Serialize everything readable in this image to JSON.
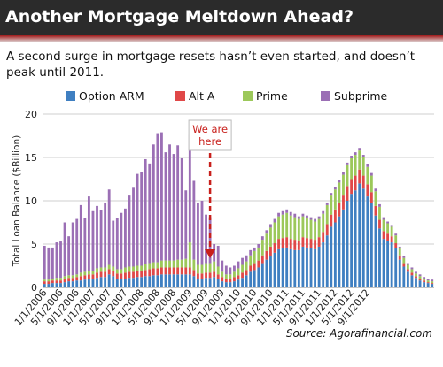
{
  "header": {
    "title": "Another Mortgage Meltdown Ahead?"
  },
  "subtitle": "A second surge in mortgage resets hasn’t even started, and doesn’t peak until 2011.",
  "source": "Source: Agorafinancial.com",
  "colors": {
    "banner": "#2b2b2b",
    "accent": "#a01818",
    "arrow": "#c8201c"
  },
  "chart_data": {
    "type": "bar",
    "stacked": true,
    "ylabel": "Total Loan Balance ($Billion)",
    "ylim": [
      0,
      20
    ],
    "yticks": [
      0,
      5,
      10,
      15,
      20
    ],
    "grid": true,
    "legend_position": "top",
    "start_month": "1/1/2006",
    "xtick_labels": [
      "1/1/2006",
      "5/1/2006",
      "9/1/2006",
      "1/1/2007",
      "5/1/2007",
      "9/1/2007",
      "1/1/2008",
      "5/1/2008",
      "9/1/2008",
      "1/1/2009",
      "5/1/2009",
      "9/1/2009",
      "1/1/2010",
      "5/1/2010",
      "9/1/2010",
      "1/1/2011",
      "5/1/2011",
      "9/1/2011",
      "1/1/2012",
      "5/1/2012",
      "9/1/2012"
    ],
    "annotation": {
      "lines": [
        "We are",
        "here"
      ],
      "month": "6/1/2009"
    },
    "series": [
      {
        "name": "Option ARM",
        "color": "#3f7fc1",
        "values": [
          0.4,
          0.4,
          0.5,
          0.5,
          0.5,
          0.6,
          0.7,
          0.7,
          0.8,
          0.8,
          0.9,
          1.0,
          1.0,
          1.1,
          1.2,
          1.2,
          1.5,
          1.3,
          1.0,
          1.0,
          1.0,
          1.1,
          1.1,
          1.2,
          1.2,
          1.3,
          1.3,
          1.4,
          1.4,
          1.5,
          1.5,
          1.5,
          1.5,
          1.5,
          1.5,
          1.5,
          1.5,
          1.3,
          1.0,
          1.0,
          1.1,
          1.1,
          1.2,
          1.0,
          0.7,
          0.6,
          0.6,
          0.7,
          0.9,
          1.1,
          1.4,
          1.8,
          2.0,
          2.3,
          2.8,
          3.2,
          3.6,
          4.0,
          4.4,
          4.5,
          4.6,
          4.4,
          4.3,
          4.3,
          4.7,
          4.6,
          4.5,
          4.4,
          4.7,
          5.2,
          6.0,
          7.0,
          7.5,
          8.2,
          9.0,
          10.0,
          10.8,
          11.2,
          12.0,
          11.4,
          10.5,
          9.7,
          8.3,
          6.8,
          5.6,
          5.4,
          5.2,
          4.5,
          3.2,
          2.4,
          1.8,
          1.4,
          1.1,
          0.8,
          0.6,
          0.5,
          0.4
        ]
      },
      {
        "name": "Alt A",
        "color": "#e04848",
        "values": [
          0.3,
          0.3,
          0.3,
          0.3,
          0.3,
          0.4,
          0.4,
          0.4,
          0.4,
          0.5,
          0.5,
          0.5,
          0.5,
          0.6,
          0.6,
          0.6,
          0.6,
          0.6,
          0.6,
          0.6,
          0.7,
          0.7,
          0.7,
          0.7,
          0.7,
          0.7,
          0.8,
          0.8,
          0.8,
          0.8,
          0.8,
          0.8,
          0.8,
          0.8,
          0.8,
          0.8,
          0.8,
          0.7,
          0.6,
          0.6,
          0.6,
          0.6,
          0.6,
          0.5,
          0.5,
          0.4,
          0.4,
          0.5,
          0.5,
          0.6,
          0.6,
          0.7,
          0.8,
          0.8,
          0.9,
          1.0,
          1.1,
          1.1,
          1.2,
          1.2,
          1.2,
          1.2,
          1.2,
          1.1,
          1.1,
          1.1,
          1.1,
          1.1,
          1.1,
          1.2,
          1.3,
          1.4,
          1.5,
          1.6,
          1.6,
          1.7,
          1.7,
          1.7,
          1.6,
          1.5,
          1.4,
          1.3,
          1.1,
          1.0,
          0.9,
          0.8,
          0.7,
          0.6,
          0.5,
          0.4,
          0.3,
          0.3,
          0.2,
          0.2,
          0.2,
          0.1,
          0.1
        ]
      },
      {
        "name": "Prime",
        "color": "#9cc85a",
        "values": [
          0.2,
          0.2,
          0.2,
          0.3,
          0.3,
          0.3,
          0.3,
          0.3,
          0.3,
          0.4,
          0.4,
          0.4,
          0.4,
          0.5,
          0.5,
          0.5,
          0.5,
          0.5,
          0.5,
          0.5,
          0.6,
          0.6,
          0.6,
          0.6,
          0.6,
          0.7,
          0.7,
          0.7,
          0.7,
          0.8,
          0.8,
          0.8,
          0.8,
          0.9,
          0.9,
          1.0,
          2.9,
          1.2,
          1.0,
          1.0,
          1.1,
          1.1,
          1.2,
          0.9,
          0.6,
          0.5,
          0.5,
          0.6,
          0.8,
          0.9,
          1.0,
          1.2,
          1.4,
          1.5,
          1.8,
          2.0,
          2.2,
          2.4,
          2.6,
          2.7,
          2.8,
          2.7,
          2.6,
          2.5,
          2.4,
          2.3,
          2.2,
          2.1,
          2.1,
          2.1,
          2.2,
          2.2,
          2.3,
          2.3,
          2.4,
          2.4,
          2.4,
          2.4,
          2.2,
          2.1,
          2.0,
          1.9,
          1.7,
          1.5,
          1.3,
          1.2,
          1.1,
          0.9,
          0.8,
          0.6,
          0.5,
          0.4,
          0.3,
          0.3,
          0.2,
          0.2,
          0.2
        ]
      },
      {
        "name": "Subprime",
        "color": "#9b6fb5",
        "values": [
          3.9,
          3.7,
          3.6,
          4.1,
          4.2,
          6.2,
          4.5,
          6.1,
          6.4,
          7.8,
          6.2,
          8.6,
          6.9,
          7.2,
          6.6,
          7.5,
          8.7,
          5.3,
          5.9,
          6.5,
          6.8,
          8.2,
          9.1,
          10.6,
          10.8,
          12.1,
          11.5,
          13.6,
          14.9,
          14.8,
          12.5,
          13.4,
          12.3,
          13.2,
          11.7,
          7.9,
          12.4,
          9.1,
          7.2,
          7.4,
          5.6,
          5.3,
          2.0,
          2.4,
          1.3,
          1.0,
          0.8,
          0.7,
          0.8,
          0.8,
          0.7,
          0.6,
          0.4,
          0.4,
          0.4,
          0.4,
          0.4,
          0.4,
          0.4,
          0.4,
          0.4,
          0.4,
          0.4,
          0.3,
          0.3,
          0.3,
          0.3,
          0.3,
          0.3,
          0.3,
          0.3,
          0.3,
          0.3,
          0.3,
          0.3,
          0.3,
          0.3,
          0.3,
          0.3,
          0.3,
          0.3,
          0.3,
          0.3,
          0.3,
          0.3,
          0.2,
          0.2,
          0.2,
          0.2,
          0.2,
          0.2,
          0.2,
          0.2,
          0.2,
          0.2,
          0.2,
          0.2
        ]
      }
    ]
  }
}
